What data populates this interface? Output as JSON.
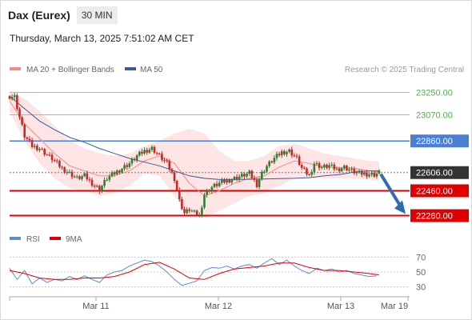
{
  "header": {
    "title": "Dax (Eurex)",
    "interval": "30 MIN",
    "datetime": "Thursday, March 13, 2025 7:51:02 AM CET"
  },
  "legend": {
    "ma20": "MA 20 + Bollinger Bands",
    "ma50": "MA 50",
    "copyright": "Research © 2025 Trading Central",
    "rsi": "RSI",
    "rsi_ma": "9MA"
  },
  "colors": {
    "up_candle": "#2e7d32",
    "down_candle": "#c62828",
    "ma20": "#f28b82",
    "bollinger_fill": "#fde0e0",
    "ma50": "#3c5a99",
    "resistance_line": "#9ccc65",
    "pivot_line": "#4a7fd4",
    "support_line": "#e00000",
    "current_price": "#333333",
    "rsi_line": "#5b8bd9",
    "rsi_ma_line": "#e00000",
    "arrow": "#2e6db4"
  },
  "chart_data": {
    "type": "line",
    "title": "Dax (Eurex)",
    "interval": "30 MIN",
    "price_axis_range": [
      22180,
      23350
    ],
    "x_axis_labels": [
      "Mar 11",
      "Mar 12",
      "Mar 13",
      "Mar 19"
    ],
    "levels": [
      {
        "label": "23250.00",
        "value": 23250,
        "kind": "resistance"
      },
      {
        "label": "23070.00",
        "value": 23070,
        "kind": "resistance"
      },
      {
        "label": "22860.00",
        "value": 22860,
        "kind": "pivot"
      },
      {
        "label": "22606.00",
        "value": 22606,
        "kind": "current"
      },
      {
        "label": "22460.00",
        "value": 22460,
        "kind": "support"
      },
      {
        "label": "22260.00",
        "value": 22260,
        "kind": "support"
      }
    ],
    "forecast": {
      "from": 22606,
      "to": 22280,
      "direction": "down"
    },
    "price_series": [
      [
        0,
        23220
      ],
      [
        2,
        23215
      ],
      [
        4,
        23050
      ],
      [
        6,
        22900
      ],
      [
        9,
        22820
      ],
      [
        12,
        22800
      ],
      [
        15,
        22750
      ],
      [
        18,
        22700
      ],
      [
        21,
        22640
      ],
      [
        24,
        22600
      ],
      [
        27,
        22560
      ],
      [
        30,
        22580
      ],
      [
        33,
        22520
      ],
      [
        36,
        22470
      ],
      [
        39,
        22560
      ],
      [
        42,
        22600
      ],
      [
        45,
        22640
      ],
      [
        48,
        22680
      ],
      [
        51,
        22740
      ],
      [
        54,
        22780
      ],
      [
        57,
        22800
      ],
      [
        60,
        22740
      ],
      [
        63,
        22680
      ],
      [
        66,
        22560
      ],
      [
        68,
        22380
      ],
      [
        70,
        22280
      ],
      [
        72,
        22310
      ],
      [
        74,
        22280
      ],
      [
        76,
        22260
      ],
      [
        78,
        22430
      ],
      [
        81,
        22490
      ],
      [
        84,
        22520
      ],
      [
        87,
        22540
      ],
      [
        90,
        22560
      ],
      [
        93,
        22580
      ],
      [
        96,
        22600
      ],
      [
        99,
        22510
      ],
      [
        101,
        22600
      ],
      [
        103,
        22660
      ],
      [
        106,
        22720
      ],
      [
        109,
        22770
      ],
      [
        112,
        22780
      ],
      [
        115,
        22720
      ],
      [
        117,
        22640
      ],
      [
        120,
        22580
      ],
      [
        122,
        22680
      ],
      [
        125,
        22650
      ],
      [
        128,
        22660
      ],
      [
        131,
        22630
      ],
      [
        134,
        22650
      ],
      [
        137,
        22620
      ],
      [
        140,
        22600
      ],
      [
        143,
        22595
      ],
      [
        146,
        22590
      ],
      [
        148,
        22606
      ]
    ],
    "ma20_series": [
      [
        0,
        23180
      ],
      [
        6,
        23000
      ],
      [
        12,
        22880
      ],
      [
        18,
        22760
      ],
      [
        24,
        22660
      ],
      [
        30,
        22620
      ],
      [
        36,
        22580
      ],
      [
        42,
        22580
      ],
      [
        48,
        22620
      ],
      [
        54,
        22700
      ],
      [
        60,
        22740
      ],
      [
        66,
        22680
      ],
      [
        72,
        22520
      ],
      [
        78,
        22420
      ],
      [
        84,
        22460
      ],
      [
        90,
        22520
      ],
      [
        96,
        22560
      ],
      [
        102,
        22580
      ],
      [
        108,
        22650
      ],
      [
        114,
        22700
      ],
      [
        120,
        22680
      ],
      [
        126,
        22650
      ],
      [
        132,
        22645
      ],
      [
        138,
        22640
      ],
      [
        144,
        22620
      ],
      [
        148,
        22612
      ]
    ],
    "bollinger_upper": [
      [
        0,
        23260
      ],
      [
        6,
        23200
      ],
      [
        12,
        23100
      ],
      [
        18,
        22980
      ],
      [
        24,
        22860
      ],
      [
        30,
        22800
      ],
      [
        36,
        22760
      ],
      [
        42,
        22740
      ],
      [
        48,
        22760
      ],
      [
        54,
        22820
      ],
      [
        60,
        22860
      ],
      [
        66,
        22920
      ],
      [
        72,
        22960
      ],
      [
        78,
        22920
      ],
      [
        84,
        22780
      ],
      [
        90,
        22700
      ],
      [
        96,
        22700
      ],
      [
        102,
        22740
      ],
      [
        108,
        22820
      ],
      [
        114,
        22840
      ],
      [
        120,
        22800
      ],
      [
        126,
        22760
      ],
      [
        132,
        22740
      ],
      [
        138,
        22720
      ],
      [
        144,
        22700
      ],
      [
        148,
        22700
      ]
    ],
    "bollinger_lower": [
      [
        0,
        23100
      ],
      [
        6,
        22860
      ],
      [
        12,
        22680
      ],
      [
        18,
        22560
      ],
      [
        24,
        22480
      ],
      [
        30,
        22460
      ],
      [
        36,
        22420
      ],
      [
        42,
        22440
      ],
      [
        48,
        22500
      ],
      [
        54,
        22600
      ],
      [
        60,
        22580
      ],
      [
        66,
        22420
      ],
      [
        72,
        22260
      ],
      [
        78,
        22240
      ],
      [
        84,
        22300
      ],
      [
        90,
        22360
      ],
      [
        96,
        22420
      ],
      [
        102,
        22440
      ],
      [
        108,
        22500
      ],
      [
        114,
        22560
      ],
      [
        120,
        22560
      ],
      [
        126,
        22560
      ],
      [
        132,
        22560
      ],
      [
        138,
        22560
      ],
      [
        144,
        22550
      ],
      [
        148,
        22540
      ]
    ],
    "ma50_series": [
      [
        0,
        23220
      ],
      [
        6,
        23120
      ],
      [
        12,
        23020
      ],
      [
        18,
        22950
      ],
      [
        24,
        22890
      ],
      [
        30,
        22850
      ],
      [
        36,
        22800
      ],
      [
        42,
        22760
      ],
      [
        48,
        22720
      ],
      [
        54,
        22690
      ],
      [
        60,
        22660
      ],
      [
        66,
        22620
      ],
      [
        72,
        22580
      ],
      [
        78,
        22560
      ],
      [
        84,
        22550
      ],
      [
        90,
        22550
      ],
      [
        96,
        22552
      ],
      [
        102,
        22555
      ],
      [
        108,
        22558
      ],
      [
        114,
        22560
      ],
      [
        120,
        22565
      ],
      [
        126,
        22580
      ],
      [
        132,
        22590
      ],
      [
        138,
        22610
      ],
      [
        144,
        22620
      ],
      [
        148,
        22620
      ]
    ],
    "rsi": {
      "range": [
        20,
        80
      ],
      "ticks": [
        70,
        50,
        30
      ],
      "series": [
        [
          0,
          55
        ],
        [
          3,
          40
        ],
        [
          6,
          52
        ],
        [
          9,
          34
        ],
        [
          12,
          42
        ],
        [
          15,
          36
        ],
        [
          18,
          40
        ],
        [
          21,
          38
        ],
        [
          24,
          44
        ],
        [
          27,
          40
        ],
        [
          30,
          45
        ],
        [
          33,
          40
        ],
        [
          36,
          36
        ],
        [
          39,
          46
        ],
        [
          42,
          50
        ],
        [
          45,
          52
        ],
        [
          48,
          58
        ],
        [
          51,
          62
        ],
        [
          54,
          66
        ],
        [
          57,
          64
        ],
        [
          60,
          58
        ],
        [
          63,
          50
        ],
        [
          66,
          40
        ],
        [
          69,
          32
        ],
        [
          72,
          35
        ],
        [
          75,
          38
        ],
        [
          78,
          52
        ],
        [
          81,
          56
        ],
        [
          84,
          55
        ],
        [
          87,
          58
        ],
        [
          90,
          54
        ],
        [
          93,
          58
        ],
        [
          96,
          60
        ],
        [
          99,
          55
        ],
        [
          102,
          62
        ],
        [
          105,
          68
        ],
        [
          108,
          60
        ],
        [
          111,
          66
        ],
        [
          114,
          58
        ],
        [
          117,
          52
        ],
        [
          120,
          48
        ],
        [
          123,
          55
        ],
        [
          126,
          52
        ],
        [
          129,
          54
        ],
        [
          132,
          50
        ],
        [
          135,
          52
        ],
        [
          138,
          48
        ],
        [
          141,
          46
        ],
        [
          144,
          44
        ],
        [
          147,
          45
        ]
      ],
      "ma_series": [
        [
          0,
          52
        ],
        [
          6,
          48
        ],
        [
          12,
          42
        ],
        [
          18,
          40
        ],
        [
          24,
          40
        ],
        [
          30,
          42
        ],
        [
          36,
          42
        ],
        [
          42,
          44
        ],
        [
          48,
          50
        ],
        [
          54,
          60
        ],
        [
          60,
          63
        ],
        [
          66,
          54
        ],
        [
          72,
          42
        ],
        [
          78,
          40
        ],
        [
          84,
          48
        ],
        [
          90,
          54
        ],
        [
          96,
          56
        ],
        [
          102,
          58
        ],
        [
          108,
          62
        ],
        [
          114,
          62
        ],
        [
          120,
          56
        ],
        [
          126,
          52
        ],
        [
          132,
          52
        ],
        [
          138,
          50
        ],
        [
          144,
          48
        ],
        [
          148,
          46
        ]
      ]
    }
  }
}
